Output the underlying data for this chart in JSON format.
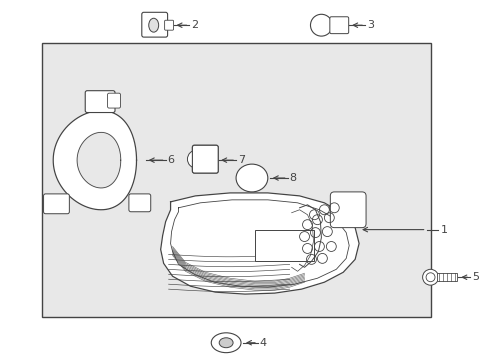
{
  "bg_color": "#f0f0f0",
  "box_bg": "#e8e8e8",
  "line_color": "#444444",
  "white": "#ffffff",
  "figsize": [
    4.89,
    3.6
  ],
  "dpi": 100
}
